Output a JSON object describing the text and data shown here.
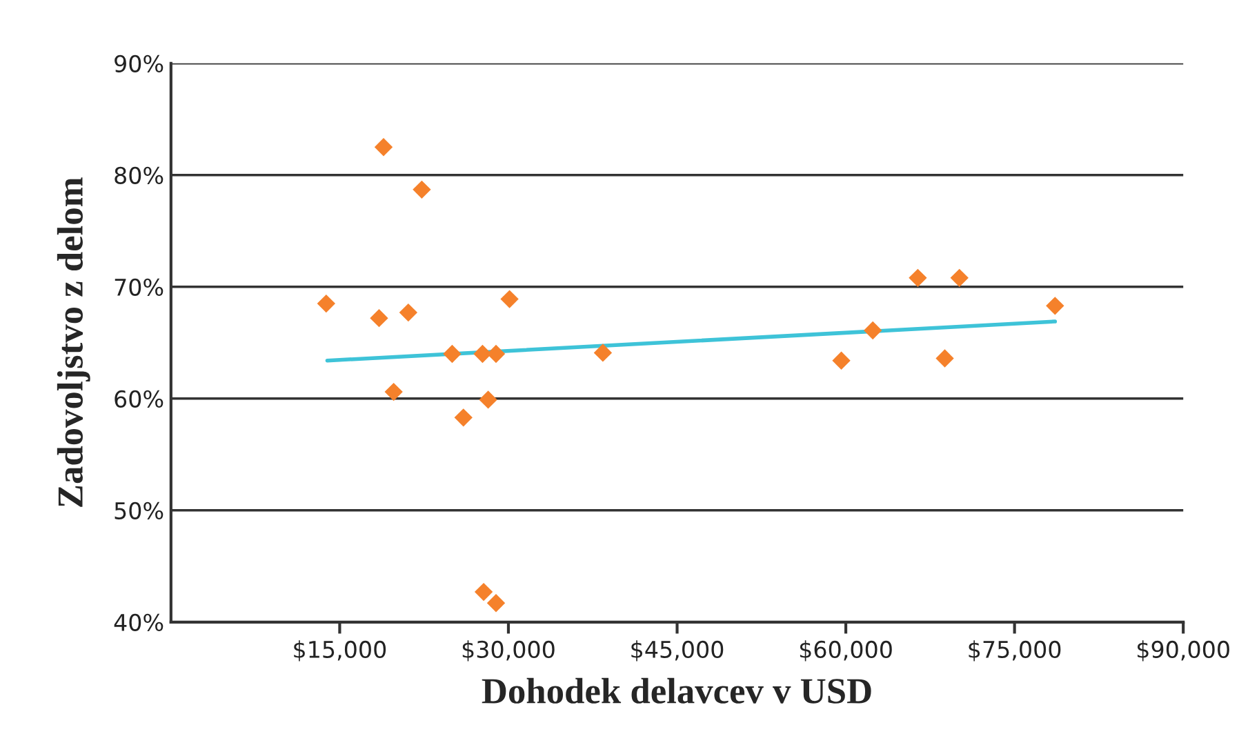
{
  "chart_data": {
    "type": "scatter",
    "xlabel": "Dohodek delavcev v USD",
    "ylabel": "Zadovoljstvo z delom",
    "series": [
      {
        "color": "#f5812b",
        "marker": "diamond",
        "x": [
          13800,
          18900,
          22300,
          18500,
          21100,
          30100,
          25000,
          27700,
          28900,
          38400,
          19800,
          28200,
          26000,
          27800,
          28900,
          59600,
          62400,
          66400,
          70100,
          68800,
          78600
        ],
        "values": [
          68.5,
          82.5,
          78.7,
          67.2,
          67.7,
          68.9,
          64.0,
          64.0,
          64.0,
          64.1,
          60.6,
          59.9,
          58.3,
          42.7,
          41.7,
          63.4,
          66.1,
          70.8,
          70.8,
          63.6,
          68.3
        ]
      },
      {
        "type": "line",
        "color": "#3ec3d8",
        "x": [
          13900,
          78600
        ],
        "values": [
          63.4,
          66.9
        ]
      }
    ],
    "xlim": [
      0,
      90000
    ],
    "xticks": [
      {
        "value": 15000,
        "label": "$15,000"
      },
      {
        "value": 30000,
        "label": "$30,000"
      },
      {
        "value": 45000,
        "label": "$45,000"
      },
      {
        "value": 60000,
        "label": "$60,000"
      },
      {
        "value": 75000,
        "label": "$75,000"
      },
      {
        "value": 90000,
        "label": "$90,000"
      }
    ],
    "ylim": [
      40,
      90
    ],
    "yticks": [
      {
        "value": 40,
        "label": "40%"
      },
      {
        "value": 50,
        "label": "50%"
      },
      {
        "value": 60,
        "label": "60%"
      },
      {
        "value": 70,
        "label": "70%"
      },
      {
        "value": 80,
        "label": "80%"
      },
      {
        "value": 90,
        "label": "90%"
      }
    ],
    "grid": "y"
  }
}
